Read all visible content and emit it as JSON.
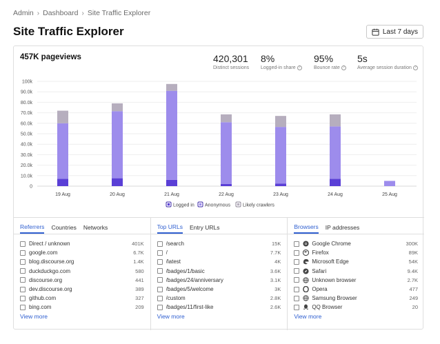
{
  "breadcrumb": [
    "Admin",
    "Dashboard",
    "Site Traffic Explorer"
  ],
  "page_title": "Site Traffic Explorer",
  "date_range_label": "Last 7 days",
  "summary": {
    "pageviews_label": "457K pageviews",
    "stats": [
      {
        "value": "420,301",
        "label": "Distinct sessions",
        "info": false
      },
      {
        "value": "8%",
        "label": "Logged-in share",
        "info": true
      },
      {
        "value": "95%",
        "label": "Bounce rate",
        "info": true
      },
      {
        "value": "5s",
        "label": "Average session duration",
        "info": true
      }
    ]
  },
  "colors": {
    "logged_in": "#5a3fd6",
    "anonymous": "#9d8cec",
    "crawlers": "#b6aebe",
    "accent": "#2f5fd0"
  },
  "chart_data": {
    "type": "bar",
    "stacked": true,
    "categories": [
      "19 Aug",
      "20 Aug",
      "21 Aug",
      "22 Aug",
      "23 Aug",
      "24 Aug",
      "25 Aug"
    ],
    "series": [
      {
        "name": "Logged in",
        "values": [
          7000,
          7500,
          6000,
          2000,
          2500,
          7000,
          0
        ]
      },
      {
        "name": "Anonymous",
        "values": [
          53000,
          64000,
          85000,
          59000,
          54000,
          50000,
          5000
        ]
      },
      {
        "name": "Likely crawlers",
        "values": [
          12000,
          7500,
          6500,
          7500,
          10500,
          11500,
          0
        ]
      }
    ],
    "yticks": [
      "0",
      "10.0k",
      "20.0k",
      "30.0k",
      "40.0k",
      "50.0k",
      "60.0k",
      "70.0k",
      "80.0k",
      "90.0k",
      "100k"
    ],
    "ylim": [
      0,
      100000
    ],
    "grid": true,
    "legend_position": "bottom"
  },
  "tables": [
    {
      "tabs": [
        "Referrers",
        "Countries",
        "Networks"
      ],
      "active_tab": 0,
      "rows": [
        {
          "label": "Direct / unknown",
          "count": "401K"
        },
        {
          "label": "google.com",
          "count": "6.7K"
        },
        {
          "label": "blog.discourse.org",
          "count": "1.4K"
        },
        {
          "label": "duckduckgo.com",
          "count": "580"
        },
        {
          "label": "discourse.org",
          "count": "441"
        },
        {
          "label": "dev.discourse.org",
          "count": "389"
        },
        {
          "label": "github.com",
          "count": "327"
        },
        {
          "label": "bing.com",
          "count": "209"
        }
      ],
      "view_more": "View more"
    },
    {
      "tabs": [
        "Top URLs",
        "Entry URLs"
      ],
      "active_tab": 0,
      "rows": [
        {
          "label": "/search",
          "count": "15K"
        },
        {
          "label": "/",
          "count": "7.7K"
        },
        {
          "label": "/latest",
          "count": "4K"
        },
        {
          "label": "/badges/1/basic",
          "count": "3.6K"
        },
        {
          "label": "/badges/24/anniversary",
          "count": "3.1K"
        },
        {
          "label": "/badges/5/welcome",
          "count": "3K"
        },
        {
          "label": "/custom",
          "count": "2.8K"
        },
        {
          "label": "/badges/11/first-like",
          "count": "2.6K"
        }
      ],
      "view_more": "View more"
    },
    {
      "tabs": [
        "Browsers",
        "IP addresses"
      ],
      "active_tab": 0,
      "rows": [
        {
          "label": "Google Chrome",
          "count": "300K",
          "icon": "chrome-icon"
        },
        {
          "label": "Firefox",
          "count": "89K",
          "icon": "firefox-icon"
        },
        {
          "label": "Microsoft Edge",
          "count": "54K",
          "icon": "edge-icon"
        },
        {
          "label": "Safari",
          "count": "9.4K",
          "icon": "safari-icon"
        },
        {
          "label": "Unknown browser",
          "count": "2.7K",
          "icon": "globe-icon"
        },
        {
          "label": "Opera",
          "count": "477",
          "icon": "opera-icon"
        },
        {
          "label": "Samsung Browser",
          "count": "249",
          "icon": "globe-icon"
        },
        {
          "label": "QQ Browser",
          "count": "20",
          "icon": "qq-icon"
        }
      ],
      "view_more": "View more"
    }
  ]
}
